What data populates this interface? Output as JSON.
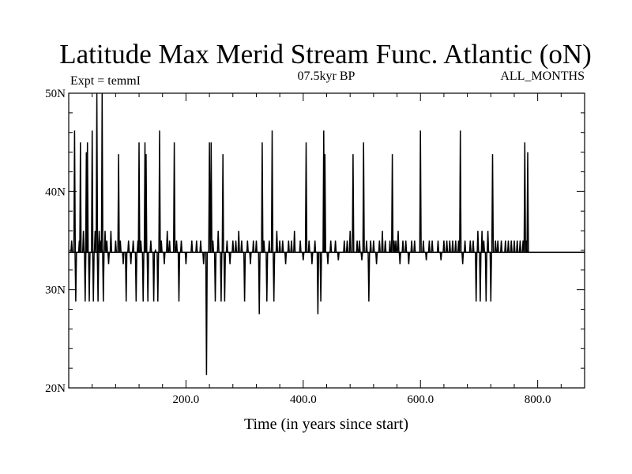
{
  "chart_data": {
    "type": "line",
    "title": "Latitude Max Merid Stream Func. Atlantic (oN)",
    "subtitle_left": "Expt = temmI",
    "subtitle_center": "07.5kyr BP",
    "subtitle_right": "ALL_MONTHS",
    "xlabel": "Time (in years since start)",
    "ylabel": "",
    "xlim": [
      0,
      880
    ],
    "ylim": [
      20,
      50
    ],
    "x_ticks": [
      {
        "value": 200,
        "label": "200.0"
      },
      {
        "value": 400,
        "label": "400.0"
      },
      {
        "value": 600,
        "label": "600.0"
      },
      {
        "value": 800,
        "label": "800.0"
      }
    ],
    "y_ticks": [
      {
        "value": 20,
        "label": "20N"
      },
      {
        "value": 30,
        "label": "30N"
      },
      {
        "value": 40,
        "label": "40N"
      },
      {
        "value": 50,
        "label": "50N"
      }
    ],
    "reference_line": 33.8,
    "baseline": 33.8,
    "events": [
      [
        5,
        35
      ],
      [
        10,
        46.2
      ],
      [
        12,
        28.8
      ],
      [
        18,
        35
      ],
      [
        20,
        45
      ],
      [
        25,
        36
      ],
      [
        28,
        28.8
      ],
      [
        30,
        44
      ],
      [
        32,
        45
      ],
      [
        35,
        28.8
      ],
      [
        40,
        46.2
      ],
      [
        42,
        28.8
      ],
      [
        45,
        36
      ],
      [
        48,
        50
      ],
      [
        50,
        28.8
      ],
      [
        52,
        36
      ],
      [
        55,
        35
      ],
      [
        57,
        50
      ],
      [
        59,
        28.8
      ],
      [
        62,
        36
      ],
      [
        65,
        35
      ],
      [
        68,
        32.6
      ],
      [
        72,
        36
      ],
      [
        80,
        35
      ],
      [
        85,
        43.8
      ],
      [
        88,
        35
      ],
      [
        93,
        32.6
      ],
      [
        98,
        28.8
      ],
      [
        102,
        35
      ],
      [
        106,
        32.6
      ],
      [
        110,
        35
      ],
      [
        115,
        28.8
      ],
      [
        118,
        35
      ],
      [
        120,
        45
      ],
      [
        123,
        35
      ],
      [
        127,
        28.8
      ],
      [
        130,
        45
      ],
      [
        132,
        43.8
      ],
      [
        135,
        28.8
      ],
      [
        140,
        35
      ],
      [
        145,
        28.8
      ],
      [
        148,
        34
      ],
      [
        152,
        28.8
      ],
      [
        155,
        46.2
      ],
      [
        158,
        35
      ],
      [
        163,
        32.6
      ],
      [
        168,
        36
      ],
      [
        172,
        35
      ],
      [
        180,
        45
      ],
      [
        184,
        35
      ],
      [
        188,
        28.8
      ],
      [
        192,
        35
      ],
      [
        200,
        32.6
      ],
      [
        210,
        35
      ],
      [
        218,
        35
      ],
      [
        225,
        35
      ],
      [
        230,
        32.6
      ],
      [
        235,
        21.3
      ],
      [
        240,
        45
      ],
      [
        243,
        45
      ],
      [
        246,
        35
      ],
      [
        250,
        28.8
      ],
      [
        255,
        36
      ],
      [
        260,
        28.8
      ],
      [
        263,
        43.8
      ],
      [
        266,
        28.8
      ],
      [
        270,
        35
      ],
      [
        275,
        32.6
      ],
      [
        280,
        35
      ],
      [
        285,
        35
      ],
      [
        290,
        36
      ],
      [
        295,
        35
      ],
      [
        300,
        28.8
      ],
      [
        305,
        35
      ],
      [
        310,
        32.6
      ],
      [
        315,
        35
      ],
      [
        320,
        35
      ],
      [
        325,
        27.5
      ],
      [
        330,
        45
      ],
      [
        333,
        35
      ],
      [
        338,
        28.8
      ],
      [
        342,
        35
      ],
      [
        347,
        46.2
      ],
      [
        350,
        28.8
      ],
      [
        355,
        36
      ],
      [
        360,
        35
      ],
      [
        365,
        35
      ],
      [
        370,
        32.6
      ],
      [
        375,
        35
      ],
      [
        380,
        35
      ],
      [
        385,
        36
      ],
      [
        395,
        35
      ],
      [
        400,
        33
      ],
      [
        405,
        45
      ],
      [
        410,
        35
      ],
      [
        415,
        32.6
      ],
      [
        420,
        35
      ],
      [
        425,
        27.5
      ],
      [
        430,
        28.8
      ],
      [
        435,
        46.2
      ],
      [
        437,
        43.8
      ],
      [
        442,
        32.6
      ],
      [
        447,
        35
      ],
      [
        455,
        35
      ],
      [
        460,
        33
      ],
      [
        470,
        35
      ],
      [
        475,
        35
      ],
      [
        480,
        36
      ],
      [
        485,
        43.8
      ],
      [
        492,
        35
      ],
      [
        496,
        35
      ],
      [
        500,
        33
      ],
      [
        503,
        45
      ],
      [
        508,
        35
      ],
      [
        512,
        28.8
      ],
      [
        515,
        35
      ],
      [
        520,
        35
      ],
      [
        525,
        32.6
      ],
      [
        530,
        35
      ],
      [
        535,
        36
      ],
      [
        540,
        35
      ],
      [
        548,
        35
      ],
      [
        552,
        43.8
      ],
      [
        555,
        35
      ],
      [
        558,
        35
      ],
      [
        562,
        36
      ],
      [
        565,
        32.6
      ],
      [
        570,
        35
      ],
      [
        575,
        35
      ],
      [
        580,
        32.6
      ],
      [
        585,
        35
      ],
      [
        590,
        35
      ],
      [
        600,
        46.2
      ],
      [
        605,
        35
      ],
      [
        610,
        33
      ],
      [
        615,
        35
      ],
      [
        620,
        35
      ],
      [
        630,
        35
      ],
      [
        635,
        33
      ],
      [
        640,
        35
      ],
      [
        645,
        35
      ],
      [
        650,
        35
      ],
      [
        655,
        35
      ],
      [
        660,
        35
      ],
      [
        665,
        35
      ],
      [
        668,
        46.2
      ],
      [
        672,
        32.6
      ],
      [
        676,
        35
      ],
      [
        685,
        35
      ],
      [
        690,
        35
      ],
      [
        695,
        28.8
      ],
      [
        698,
        36
      ],
      [
        702,
        28.8
      ],
      [
        705,
        36
      ],
      [
        708,
        35
      ],
      [
        712,
        28.8
      ],
      [
        715,
        36
      ],
      [
        720,
        28.8
      ],
      [
        723,
        43.8
      ],
      [
        728,
        35
      ],
      [
        732,
        35
      ],
      [
        738,
        35
      ],
      [
        745,
        35
      ],
      [
        750,
        35
      ],
      [
        755,
        35
      ],
      [
        760,
        35
      ],
      [
        765,
        35
      ],
      [
        770,
        35
      ],
      [
        775,
        35
      ],
      [
        778,
        45
      ],
      [
        781,
        35
      ],
      [
        783,
        44
      ]
    ]
  }
}
